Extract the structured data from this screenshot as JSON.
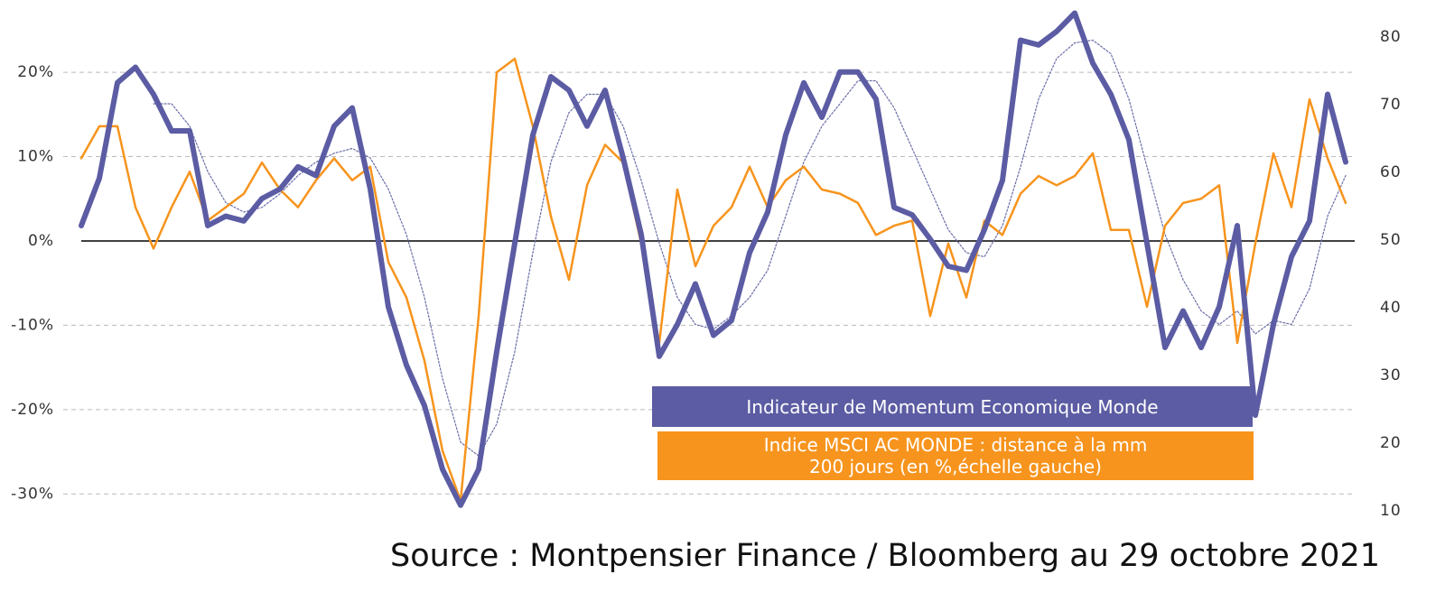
{
  "chart_data": {
    "type": "line",
    "source": "Source : Montpensier Finance / Bloomberg au 29 octobre 2021",
    "ylim": [
      -33.5,
      27.5
    ],
    "yticks": [
      {
        "value": -30,
        "label": "-30%"
      },
      {
        "value": -20,
        "label": "-20%"
      },
      {
        "value": -10,
        "label": "-10%"
      },
      {
        "value": 0,
        "label": "0%"
      },
      {
        "value": 10,
        "label": "10%"
      },
      {
        "value": 20,
        "label": "20%"
      }
    ],
    "y2lim": [
      8.1,
      84.1
    ],
    "y2ticks": [
      10,
      20,
      30,
      40,
      50,
      60,
      70,
      80
    ],
    "grid": true,
    "series": [
      {
        "name": "Indicateur de Momentum Economique Monde",
        "color": "#5b5ca3",
        "axis": "y2",
        "values": [
          52.1,
          59.1,
          73.2,
          75.5,
          71.5,
          66.1,
          66.1,
          52.1,
          53.5,
          52.8,
          56.1,
          57.5,
          60.8,
          59.5,
          66.8,
          69.5,
          57.5,
          40.1,
          31.5,
          25.5,
          16.1,
          10.8,
          16.1,
          33.5,
          49.5,
          65.5,
          74.1,
          72.1,
          66.8,
          72.1,
          62.1,
          50.8,
          32.8,
          37.5,
          43.5,
          35.9,
          38.1,
          48.1,
          54.1,
          65.5,
          73.2,
          68.1,
          74.8,
          74.8,
          70.8,
          54.8,
          53.7,
          50.1,
          46.1,
          45.5,
          51.5,
          58.8,
          79.5,
          78.8,
          80.8,
          83.5,
          76.1,
          71.5,
          64.8,
          49.5,
          34.1,
          39.5,
          34.1,
          40.1,
          52.1,
          24.1,
          37.5,
          47.5,
          52.8,
          71.5,
          61.5
        ]
      },
      {
        "name": "Indice MSCI AC MONDE : distance à la mm\n200 jours (en %,échelle gauche)",
        "color": "#f7941d",
        "values": [
          9.8,
          13.6,
          13.6,
          4.0,
          -0.9,
          4.0,
          8.2,
          2.4,
          4.0,
          5.6,
          9.3,
          6.1,
          4.0,
          7.2,
          9.8,
          7.2,
          8.8,
          -2.5,
          -6.7,
          -14.2,
          -24.9,
          -30.8,
          -8.9,
          20.0,
          21.6,
          13.6,
          2.9,
          -4.6,
          6.6,
          11.4,
          9.3,
          -0.3,
          -12.1,
          6.1,
          -3.0,
          1.8,
          4.0,
          8.8,
          4.0,
          7.2,
          8.8,
          6.1,
          5.6,
          4.5,
          0.7,
          1.8,
          2.4,
          -8.9,
          -0.3,
          -6.7,
          2.4,
          0.7,
          5.6,
          7.7,
          6.6,
          7.7,
          10.4,
          1.3,
          1.3,
          -7.8,
          1.8,
          4.5,
          5.0,
          6.6,
          -12.1,
          -0.3,
          10.4,
          4.0,
          16.8,
          9.8,
          4.5
        ]
      },
      {
        "color": "#6b6ea8",
        "axis": "y2",
        "values": [
          null,
          null,
          null,
          null,
          70.1,
          70.1,
          66.8,
          60.1,
          55.5,
          54.1,
          54.8,
          56.8,
          59.5,
          61.5,
          62.8,
          63.5,
          62.1,
          57.5,
          50.8,
          41.5,
          29.5,
          20.1,
          18.1,
          22.8,
          33.5,
          48.1,
          61.5,
          68.8,
          71.5,
          71.5,
          66.8,
          58.8,
          49.5,
          41.5,
          37.5,
          36.8,
          38.8,
          41.5,
          45.5,
          53.5,
          61.5,
          66.8,
          70.1,
          73.5,
          73.5,
          69.5,
          63.5,
          57.5,
          51.5,
          48.1,
          47.5,
          52.1,
          60.8,
          70.8,
          76.8,
          79.1,
          79.5,
          77.5,
          70.8,
          60.8,
          50.8,
          44.1,
          39.5,
          37.5,
          39.5,
          36.1,
          38.1,
          37.5,
          42.8,
          53.5,
          59.5
        ]
      }
    ]
  }
}
